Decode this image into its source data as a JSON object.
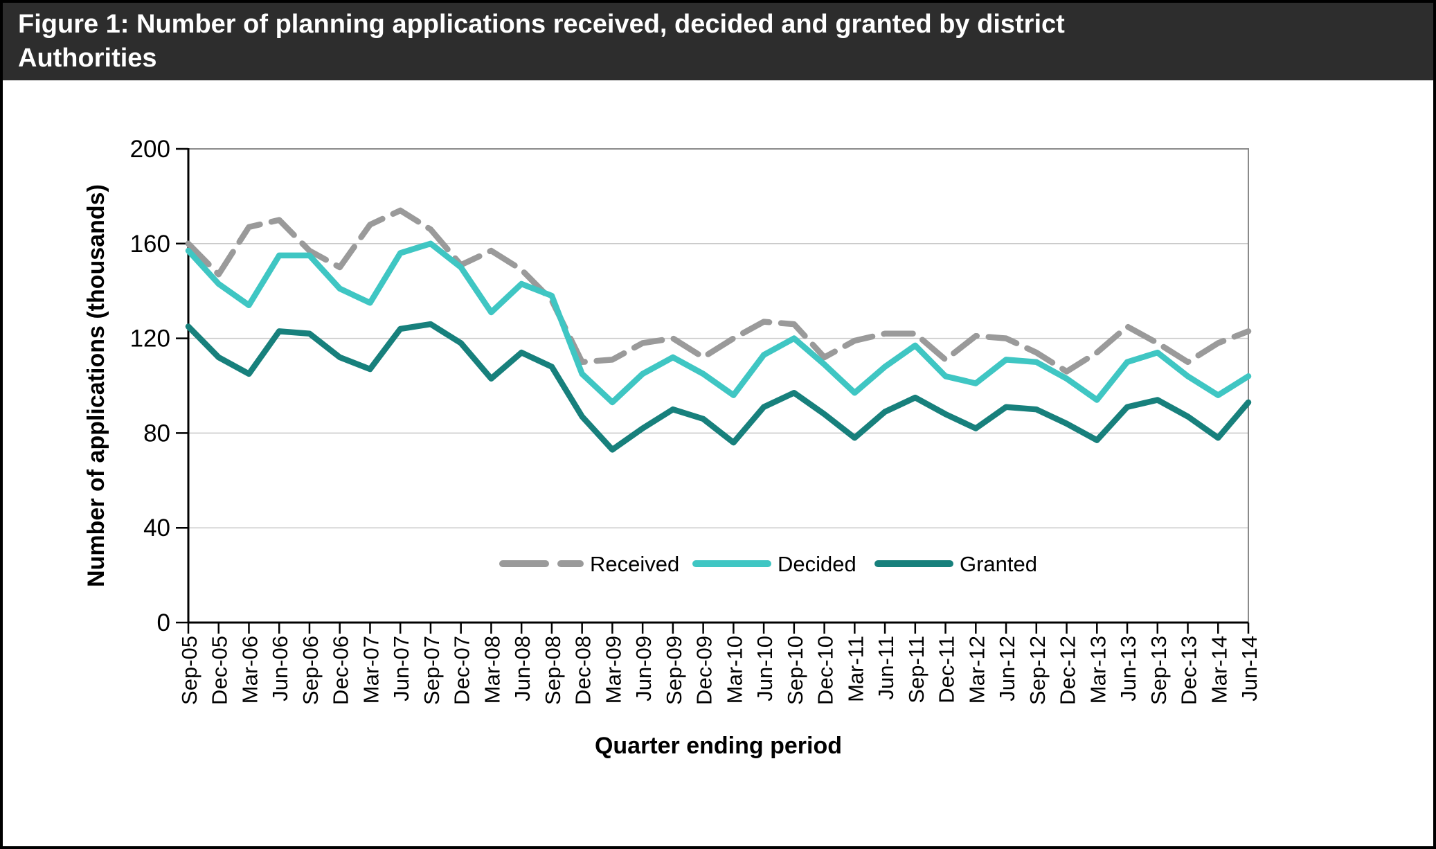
{
  "title": {
    "line1": "Figure 1: Number of planning applications received, decided and granted by district",
    "line2": "Authorities"
  },
  "colors": {
    "title_bar_bg": "#2d2d2d",
    "title_text": "#ffffff",
    "grid": "#c9c9c9",
    "axis": "#000000",
    "plot_border": "#8a8a8a",
    "received": "#9a9a9a",
    "decided": "#3fc6c3",
    "granted": "#17807c"
  },
  "chart_data": {
    "type": "line",
    "title": "Figure 1: Number of planning applications received, decided and granted by district Authorities",
    "xlabel": "Quarter ending period",
    "ylabel": "Number of applications (thousands)",
    "ylim": [
      0,
      200
    ],
    "yticks": [
      0,
      40,
      80,
      120,
      160,
      200
    ],
    "grid": true,
    "legend_position": "inside-bottom-center",
    "categories": [
      "Sep-05",
      "Dec-05",
      "Mar-06",
      "Jun-06",
      "Sep-06",
      "Dec-06",
      "Mar-07",
      "Jun-07",
      "Sep-07",
      "Dec-07",
      "Mar-08",
      "Jun-08",
      "Sep-08",
      "Dec-08",
      "Mar-09",
      "Jun-09",
      "Sep-09",
      "Dec-09",
      "Mar-10",
      "Jun-10",
      "Sep-10",
      "Dec-10",
      "Mar-11",
      "Jun-11",
      "Sep-11",
      "Dec-11",
      "Mar-12",
      "Jun-12",
      "Sep-12",
      "Dec-12",
      "Mar-13",
      "Jun-13",
      "Sep-13",
      "Dec-13",
      "Mar-14",
      "Jun-14"
    ],
    "series": [
      {
        "name": "Received",
        "style": "dashed",
        "color": "#9a9a9a",
        "values": [
          160,
          147,
          167,
          170,
          157,
          150,
          168,
          174,
          166,
          151,
          157,
          149,
          136,
          110,
          111,
          118,
          120,
          112,
          120,
          127,
          126,
          112,
          119,
          122,
          122,
          111,
          121,
          120,
          114,
          106,
          114,
          125,
          118,
          110,
          118,
          123
        ]
      },
      {
        "name": "Decided",
        "style": "solid",
        "color": "#3fc6c3",
        "values": [
          157,
          143,
          134,
          155,
          155,
          141,
          135,
          156,
          160,
          150,
          131,
          143,
          138,
          105,
          93,
          105,
          112,
          105,
          96,
          113,
          120,
          109,
          97,
          108,
          117,
          104,
          101,
          111,
          110,
          103,
          94,
          110,
          114,
          104,
          96,
          104
        ]
      },
      {
        "name": "Granted",
        "style": "solid",
        "color": "#17807c",
        "values": [
          125,
          112,
          105,
          123,
          122,
          112,
          107,
          124,
          126,
          118,
          103,
          114,
          108,
          87,
          73,
          82,
          90,
          86,
          76,
          91,
          97,
          88,
          78,
          89,
          95,
          88,
          82,
          91,
          90,
          84,
          77,
          91,
          94,
          87,
          78,
          93
        ]
      }
    ]
  }
}
